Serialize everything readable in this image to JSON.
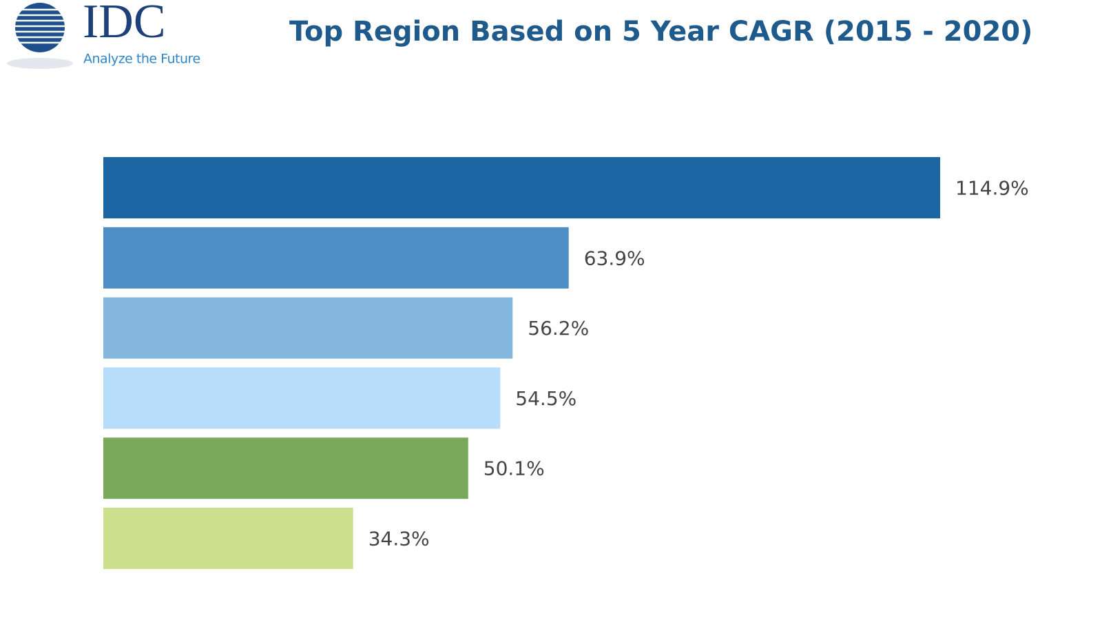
{
  "chart_data": {
    "type": "bar",
    "orientation": "horizontal",
    "title": "Top Region Based on 5 Year CAGR (2015 - 2020)",
    "logo_text": "IDC",
    "logo_tagline": "Analyze the Future",
    "categories": [
      null,
      null,
      null,
      null,
      null,
      null
    ],
    "values": [
      114.9,
      63.9,
      56.2,
      54.5,
      50.1,
      34.3
    ],
    "value_labels": [
      "114.9%",
      "63.9%",
      "56.2%",
      "54.5%",
      "50.1%",
      "34.3%"
    ],
    "colors": [
      "#1c67a3",
      "#4d8fc4",
      "#85b6de",
      "#b8ddfb",
      "#79aa5b",
      "#cbdf8c"
    ]
  }
}
